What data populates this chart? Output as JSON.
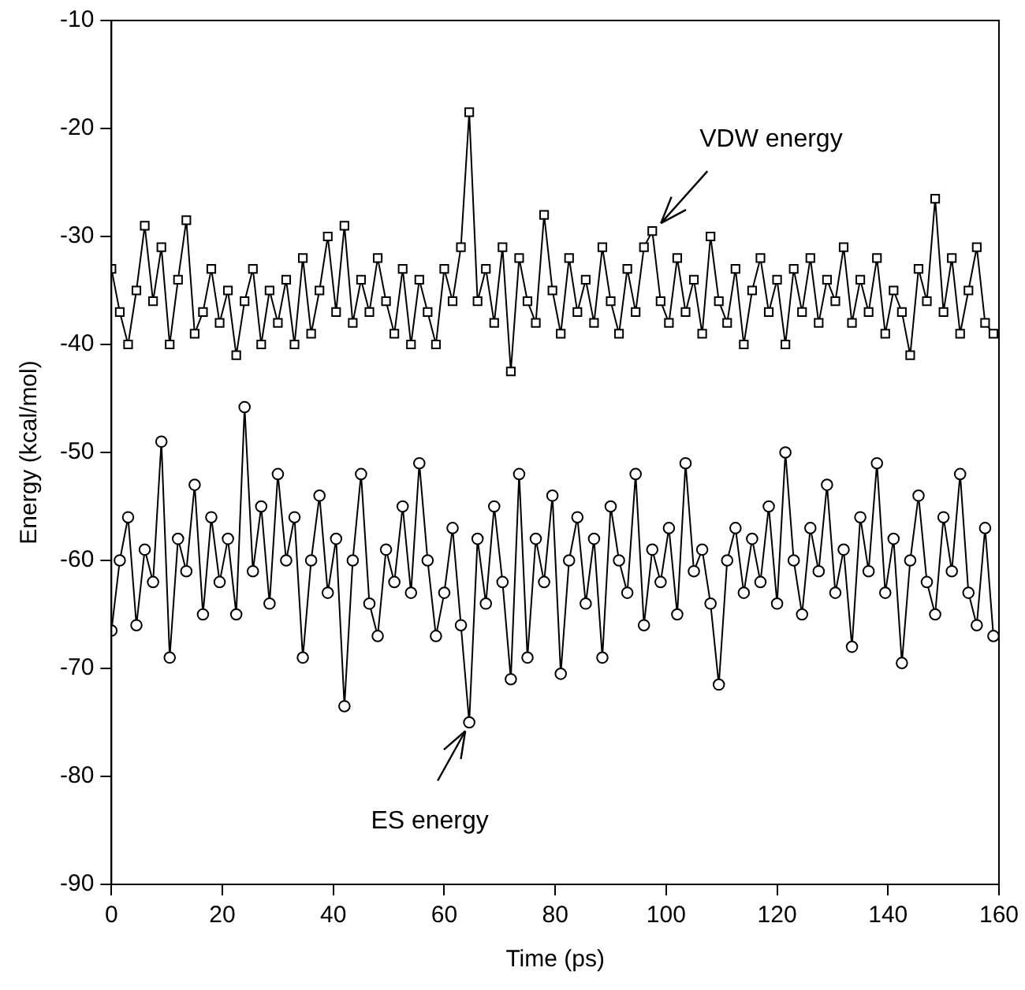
{
  "chart_data": {
    "type": "line",
    "xlabel": "Time (ps)",
    "ylabel": "Energy (kcal/mol)",
    "x": [
      0,
      1.5,
      3,
      4.5,
      6,
      7.5,
      9,
      10.5,
      12,
      13.5,
      15,
      16.5,
      18,
      19.5,
      21,
      22.5,
      24,
      25.5,
      27,
      28.5,
      30,
      31.5,
      33,
      34.5,
      36,
      37.5,
      39,
      40.5,
      42,
      43.5,
      45,
      46.5,
      48,
      49.5,
      51,
      52.5,
      54,
      55.5,
      57,
      58.5,
      60,
      61.5,
      63,
      64.5,
      66,
      67.5,
      69,
      70.5,
      72,
      73.5,
      75,
      76.5,
      78,
      79.5,
      81,
      82.5,
      84,
      85.5,
      87,
      88.5,
      90,
      91.5,
      93,
      94.5,
      96,
      97.5,
      99,
      100.5,
      102,
      103.5,
      105,
      106.5,
      108,
      109.5,
      111,
      112.5,
      114,
      115.5,
      117,
      118.5,
      120,
      121.5,
      123,
      124.5,
      126,
      127.5,
      129,
      130.5,
      132,
      133.5,
      135,
      136.5,
      138,
      139.5,
      141,
      142.5,
      144,
      145.5,
      147,
      148.5,
      150,
      151.5,
      153,
      154.5,
      156,
      157.5,
      159
    ],
    "series": [
      {
        "color": "#000000",
        "marker": "square",
        "values": [
          -33,
          -37,
          -40,
          -35,
          -29,
          -36,
          -31,
          -40,
          -34,
          -28.5,
          -39,
          -37,
          -33,
          -38,
          -35,
          -41,
          -36,
          -33,
          -40,
          -35,
          -38,
          -34,
          -40,
          -32,
          -39,
          -35,
          -30,
          -37,
          -29,
          -38,
          -34,
          -37,
          -32,
          -36,
          -39,
          -33,
          -40,
          -34,
          -37,
          -40,
          -33,
          -36,
          -31,
          -18.5,
          -36,
          -33,
          -38,
          -31,
          -42.5,
          -32,
          -36,
          -38,
          -28,
          -35,
          -39,
          -32,
          -37,
          -34,
          -38,
          -31,
          -36,
          -39,
          -33,
          -37,
          -31,
          -29.5,
          -36,
          -38,
          -32,
          -37,
          -34,
          -39,
          -30,
          -36,
          -38,
          -33,
          -40,
          -35,
          -32,
          -37,
          -34,
          -40,
          -33,
          -37,
          -32,
          -38,
          -34,
          -36,
          -31,
          -38,
          -34,
          -37,
          -32,
          -39,
          -35,
          -37,
          -41,
          -33,
          -36,
          -26.5,
          -37,
          -32,
          -39,
          -35,
          -31,
          -38,
          -39
        ]
      },
      {
        "color": "#000000",
        "marker": "circle",
        "values": [
          -66.5,
          -60,
          -56,
          -66,
          -59,
          -62,
          -49,
          -69,
          -58,
          -61,
          -53,
          -65,
          -56,
          -62,
          -58,
          -65,
          -45.8,
          -61,
          -55,
          -64,
          -52,
          -60,
          -56,
          -69,
          -60,
          -54,
          -63,
          -58,
          -73.5,
          -60,
          -52,
          -64,
          -67,
          -59,
          -62,
          -55,
          -63,
          -51,
          -60,
          -67,
          -63,
          -57,
          -66,
          -75,
          -58,
          -64,
          -55,
          -62,
          -71,
          -52,
          -69,
          -58,
          -62,
          -54,
          -70.5,
          -60,
          -56,
          -64,
          -58,
          -69,
          -55,
          -60,
          -63,
          -52,
          -66,
          -59,
          -62,
          -57,
          -65,
          -51,
          -61,
          -59,
          -64,
          -71.5,
          -60,
          -57,
          -63,
          -58,
          -62,
          -55,
          -64,
          -50,
          -60,
          -65,
          -57,
          -61,
          -53,
          -63,
          -59,
          -68,
          -56,
          -61,
          -51,
          -63,
          -58,
          -69.5,
          -60,
          -54,
          -62,
          -65,
          -56,
          -61,
          -52,
          -63,
          -66,
          -57,
          -67
        ]
      }
    ],
    "xlim": [
      0,
      160
    ],
    "xticks": [
      0,
      20,
      40,
      60,
      80,
      100,
      120,
      140,
      160
    ],
    "ylim": [
      -90,
      -10
    ],
    "yticks": [
      -90,
      -80,
      -70,
      -60,
      -50,
      -40,
      -30,
      -20,
      -10
    ],
    "annotations": [
      {
        "text": "VDW energy",
        "x": 97.5,
        "y": -29.5
      },
      {
        "text": "ES energy",
        "x": 64.5,
        "y": -75
      }
    ],
    "legend": false,
    "grid": false
  }
}
